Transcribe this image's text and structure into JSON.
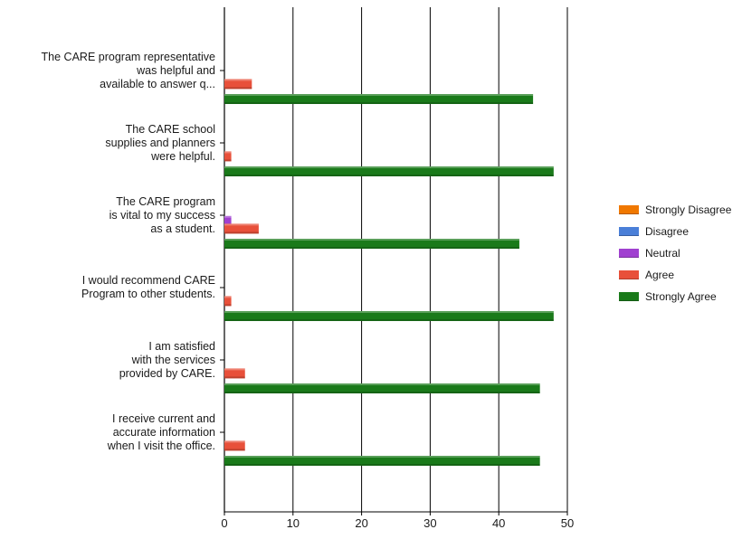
{
  "chart_data": {
    "type": "bar",
    "orientation": "horizontal",
    "title": "",
    "xlabel": "",
    "ylabel": "",
    "xlim": [
      0,
      50
    ],
    "x_ticks": [
      "0",
      "10",
      "20",
      "30",
      "40",
      "50"
    ],
    "grid": true,
    "legend_position": "right",
    "categories": [
      [
        "The CARE program representative",
        "was helpful and",
        "available to answer q..."
      ],
      [
        "The CARE school",
        "supplies and planners",
        "were helpful."
      ],
      [
        "The CARE program",
        "is vital to my success",
        "as a student."
      ],
      [
        "I would recommend CARE",
        "Program to other students."
      ],
      [
        "I am satisfied",
        "with the services",
        "provided by CARE."
      ],
      [
        "I receive current and",
        "accurate information",
        "when I visit the office."
      ]
    ],
    "series": [
      {
        "name": "Strongly Disagree",
        "color": "#f07800",
        "values": [
          0,
          0,
          0,
          0,
          0,
          0
        ]
      },
      {
        "name": "Disagree",
        "color": "#4a7fd8",
        "values": [
          0,
          0,
          0,
          0,
          0,
          0
        ]
      },
      {
        "name": "Neutral",
        "color": "#a040d0",
        "values": [
          0,
          0,
          1,
          0,
          0,
          0
        ]
      },
      {
        "name": "Agree",
        "color": "#e8503a",
        "values": [
          4,
          1,
          5,
          1,
          3,
          3
        ]
      },
      {
        "name": "Strongly Agree",
        "color": "#1a7a1a",
        "values": [
          45,
          48,
          43,
          48,
          46,
          46
        ]
      }
    ]
  }
}
